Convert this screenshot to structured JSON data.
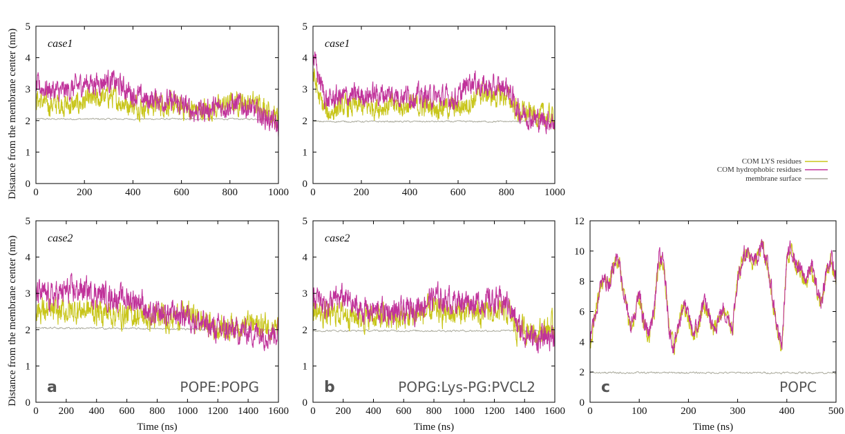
{
  "figure": {
    "ylabel": "Distance from the membrane center (nm)",
    "xlabel": "Time (ns)"
  },
  "legend": {
    "items": [
      {
        "label": "COM LYS residues",
        "color": "#c8c51a"
      },
      {
        "label": "COM hydrophobic residues",
        "color": "#c0329a"
      },
      {
        "label": "membrane surface",
        "color": "#a8a89a"
      }
    ]
  },
  "chart_data": [
    {
      "type": "line",
      "panel": "top-left",
      "annotation": "case1",
      "xlim": [
        0,
        1000
      ],
      "ylim": [
        0,
        5
      ],
      "xticks": [
        0,
        200,
        400,
        600,
        800,
        1000
      ],
      "yticks": [
        0,
        1,
        2,
        3,
        4,
        5
      ],
      "xlabel": "",
      "ylabel": "Distance from the membrane center (nm)",
      "series": [
        {
          "name": "COM LYS residues",
          "x": [
            0,
            50,
            100,
            150,
            200,
            250,
            300,
            350,
            400,
            450,
            500,
            550,
            600,
            650,
            700,
            750,
            800,
            850,
            900,
            950,
            1000
          ],
          "y": [
            2.7,
            2.5,
            2.55,
            2.45,
            2.6,
            2.65,
            2.8,
            2.6,
            2.5,
            2.45,
            2.55,
            2.5,
            2.4,
            2.35,
            2.35,
            2.4,
            2.55,
            2.6,
            2.55,
            2.45,
            2.0
          ]
        },
        {
          "name": "COM hydrophobic residues",
          "x": [
            0,
            50,
            100,
            150,
            200,
            250,
            300,
            350,
            400,
            450,
            500,
            550,
            600,
            650,
            700,
            750,
            800,
            850,
            900,
            950,
            1000
          ],
          "y": [
            3.1,
            3.0,
            2.9,
            3.0,
            3.2,
            3.2,
            3.3,
            3.1,
            2.85,
            2.65,
            2.7,
            2.6,
            2.5,
            2.3,
            2.35,
            2.4,
            2.5,
            2.5,
            2.3,
            2.1,
            1.8
          ]
        },
        {
          "name": "membrane surface",
          "x": [
            0,
            1000
          ],
          "y": [
            2.05,
            2.05
          ]
        }
      ]
    },
    {
      "type": "line",
      "panel": "top-middle",
      "annotation": "case1",
      "xlim": [
        0,
        1000
      ],
      "ylim": [
        0,
        5
      ],
      "xticks": [
        0,
        200,
        400,
        600,
        800,
        1000
      ],
      "yticks": [
        0,
        1,
        2,
        3,
        4,
        5
      ],
      "xlabel": "",
      "ylabel": "",
      "series": [
        {
          "name": "COM LYS residues",
          "x": [
            0,
            30,
            60,
            100,
            200,
            300,
            400,
            500,
            600,
            650,
            700,
            750,
            800,
            850,
            900,
            950,
            1000
          ],
          "y": [
            3.5,
            2.6,
            2.2,
            2.4,
            2.45,
            2.45,
            2.5,
            2.45,
            2.4,
            2.6,
            2.9,
            2.75,
            2.8,
            2.3,
            2.2,
            2.15,
            2.1
          ]
        },
        {
          "name": "COM hydrophobic residues",
          "x": [
            0,
            30,
            60,
            100,
            200,
            300,
            400,
            500,
            600,
            650,
            700,
            750,
            800,
            850,
            900,
            950,
            1000
          ],
          "y": [
            4.1,
            3.2,
            2.6,
            2.75,
            2.8,
            2.85,
            2.8,
            2.75,
            2.7,
            3.3,
            3.1,
            3.0,
            3.1,
            2.3,
            2.1,
            2.0,
            2.0
          ]
        },
        {
          "name": "membrane surface",
          "x": [
            0,
            1000
          ],
          "y": [
            1.97,
            1.97
          ]
        }
      ]
    },
    {
      "type": "line",
      "panel": "bottom-left",
      "annotation": "case2",
      "panel_letter": "a",
      "system_label": "POPE:POPG",
      "xlim": [
        0,
        1600
      ],
      "ylim": [
        0,
        5
      ],
      "xticks": [
        0,
        200,
        400,
        600,
        800,
        1000,
        1200,
        1400,
        1600
      ],
      "yticks": [
        0,
        1,
        2,
        3,
        4,
        5
      ],
      "xlabel": "Time (ns)",
      "ylabel": "Distance from the membrane center (nm)",
      "series": [
        {
          "name": "COM LYS residues",
          "x": [
            0,
            100,
            200,
            300,
            400,
            500,
            600,
            700,
            750,
            800,
            900,
            1000,
            1100,
            1200,
            1300,
            1400,
            1500,
            1600
          ],
          "y": [
            2.6,
            2.45,
            2.5,
            2.55,
            2.5,
            2.45,
            2.4,
            2.4,
            2.3,
            2.3,
            2.35,
            2.45,
            2.2,
            2.05,
            2.1,
            2.15,
            2.1,
            2.1
          ]
        },
        {
          "name": "COM hydrophobic residues",
          "x": [
            0,
            100,
            200,
            300,
            400,
            500,
            600,
            700,
            750,
            800,
            900,
            1000,
            1100,
            1200,
            1300,
            1400,
            1500,
            1600
          ],
          "y": [
            3.0,
            2.9,
            3.05,
            3.1,
            3.0,
            2.9,
            2.85,
            2.8,
            2.3,
            2.4,
            2.45,
            2.4,
            2.15,
            2.0,
            1.95,
            1.95,
            1.9,
            1.95
          ]
        },
        {
          "name": "membrane surface",
          "x": [
            0,
            1600
          ],
          "y": [
            2.05,
            2.0
          ]
        }
      ]
    },
    {
      "type": "line",
      "panel": "bottom-middle",
      "annotation": "case2",
      "panel_letter": "b",
      "system_label": "POPG:Lys-PG:PVCL2",
      "xlim": [
        0,
        1600
      ],
      "ylim": [
        0,
        5
      ],
      "xticks": [
        0,
        200,
        400,
        600,
        800,
        1000,
        1200,
        1400,
        1600
      ],
      "yticks": [
        0,
        1,
        2,
        3,
        4,
        5
      ],
      "xlabel": "Time (ns)",
      "ylabel": "",
      "series": [
        {
          "name": "COM LYS residues",
          "x": [
            0,
            100,
            200,
            300,
            400,
            500,
            600,
            700,
            800,
            900,
            1000,
            1100,
            1200,
            1300,
            1350,
            1400,
            1500,
            1600
          ],
          "y": [
            2.5,
            2.4,
            2.5,
            2.35,
            2.35,
            2.3,
            2.3,
            2.45,
            2.5,
            2.45,
            2.5,
            2.45,
            2.5,
            2.45,
            2.0,
            2.0,
            1.95,
            2.1
          ]
        },
        {
          "name": "COM hydrophobic residues",
          "x": [
            0,
            100,
            200,
            300,
            400,
            500,
            600,
            700,
            800,
            900,
            1000,
            1100,
            1200,
            1300,
            1350,
            1400,
            1500,
            1600
          ],
          "y": [
            2.85,
            2.7,
            2.9,
            2.55,
            2.5,
            2.5,
            2.45,
            2.65,
            2.9,
            2.8,
            2.8,
            2.75,
            2.8,
            2.7,
            2.1,
            1.9,
            1.7,
            1.9
          ]
        },
        {
          "name": "membrane surface",
          "x": [
            0,
            1600
          ],
          "y": [
            1.97,
            1.97
          ]
        }
      ]
    },
    {
      "type": "line",
      "panel": "bottom-right",
      "panel_letter": "c",
      "system_label": "POPC",
      "xlim": [
        0,
        500
      ],
      "ylim": [
        0,
        12
      ],
      "xticks": [
        0,
        100,
        200,
        300,
        400,
        500
      ],
      "yticks": [
        0,
        2,
        4,
        6,
        8,
        10,
        12
      ],
      "xlabel": "Time (ns)",
      "ylabel": "",
      "series": [
        {
          "name": "COM LYS residues",
          "x": [
            0,
            10,
            20,
            30,
            40,
            50,
            60,
            70,
            80,
            90,
            100,
            110,
            120,
            130,
            140,
            150,
            160,
            170,
            180,
            190,
            200,
            210,
            220,
            230,
            240,
            250,
            260,
            270,
            280,
            290,
            300,
            310,
            320,
            330,
            340,
            350,
            360,
            370,
            380,
            390,
            400,
            410,
            420,
            430,
            440,
            450,
            460,
            470,
            480,
            490,
            500
          ],
          "y": [
            4.0,
            5.5,
            7.5,
            8.0,
            7.8,
            9.5,
            9.0,
            7.0,
            5.0,
            5.5,
            7.0,
            5.0,
            4.5,
            6.0,
            9.5,
            9.0,
            5.0,
            3.5,
            5.0,
            6.5,
            5.5,
            4.5,
            5.0,
            6.5,
            6.0,
            4.5,
            5.5,
            6.0,
            5.5,
            5.0,
            8.0,
            9.5,
            10.0,
            9.0,
            9.5,
            10.5,
            9.0,
            7.0,
            5.0,
            3.5,
            9.5,
            10.0,
            9.0,
            8.5,
            8.0,
            9.0,
            7.5,
            6.5,
            8.5,
            9.5,
            8.0
          ]
        },
        {
          "name": "COM hydrophobic residues",
          "x": [
            0,
            10,
            20,
            30,
            40,
            50,
            60,
            70,
            80,
            90,
            100,
            110,
            120,
            130,
            140,
            150,
            160,
            170,
            180,
            190,
            200,
            210,
            220,
            230,
            240,
            250,
            260,
            270,
            280,
            290,
            300,
            310,
            320,
            330,
            340,
            350,
            360,
            370,
            380,
            390,
            400,
            410,
            420,
            430,
            440,
            450,
            460,
            470,
            480,
            490,
            500
          ],
          "y": [
            4.1,
            5.6,
            7.6,
            8.1,
            7.9,
            9.6,
            9.1,
            7.1,
            5.1,
            5.6,
            7.1,
            5.1,
            4.6,
            6.1,
            9.6,
            9.1,
            5.1,
            3.6,
            5.1,
            6.6,
            5.6,
            4.6,
            5.1,
            6.6,
            6.1,
            4.6,
            5.6,
            6.1,
            5.6,
            5.1,
            8.1,
            9.6,
            10.1,
            9.1,
            9.6,
            10.6,
            9.1,
            7.1,
            5.1,
            3.6,
            9.6,
            10.1,
            9.1,
            8.6,
            8.1,
            9.1,
            7.6,
            6.6,
            8.6,
            9.6,
            8.1
          ]
        },
        {
          "name": "membrane surface",
          "x": [
            0,
            500
          ],
          "y": [
            1.95,
            1.95
          ]
        }
      ]
    }
  ]
}
